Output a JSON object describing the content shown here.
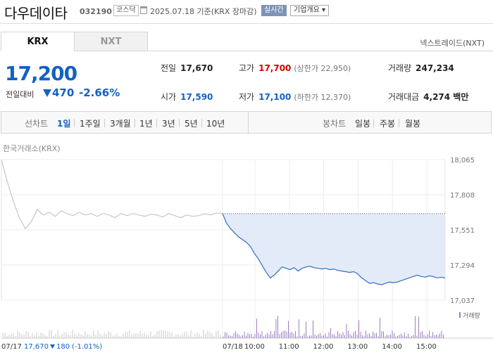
{
  "header": {
    "name": "다우데이타",
    "code": "032190",
    "market": "코스닥",
    "date": "2025.07.18 기준(KRX 장마감)",
    "realtime": "실시간",
    "company_info": "기업개요"
  },
  "tabs": {
    "active": "KRX",
    "inactive": "NXT"
  },
  "nxt_link": "넥스트레이드(NXT)",
  "quote": {
    "price": "17,200",
    "change_label": "전일대비",
    "change": "470",
    "change_pct": "-2.66%",
    "prev_label": "전일",
    "prev": "17,670",
    "high_label": "고가",
    "high": "17,700",
    "upper_limit": "(상한가 22,950)",
    "volume_label": "거래량",
    "volume": "247,234",
    "open_label": "시가",
    "open": "17,590",
    "low_label": "저가",
    "low": "17,100",
    "lower_limit": "(하한가 12,370)",
    "value_label": "거래대금",
    "value": "4,274 백만"
  },
  "periods": {
    "line_label": "선차트",
    "line_items": [
      "1일",
      "1주일",
      "3개월",
      "1년",
      "3년",
      "5년",
      "10년"
    ],
    "selected": "1일",
    "candle_label": "봉차트",
    "candle_items": [
      "일봉",
      "주봉",
      "월봉"
    ]
  },
  "chart_data": {
    "type": "line",
    "source": "한국거래소(KRX)",
    "y_ticks": [
      "18,065",
      "17,808",
      "17,551",
      "17,294",
      "17,037"
    ],
    "ylim": [
      17037,
      18065
    ],
    "prev_close": 17670,
    "x_labels": [
      "07/18",
      "10:00",
      "11:00",
      "12:00",
      "13:00",
      "14:00",
      "15:00"
    ],
    "volume_label": "거래량",
    "prev_day": {
      "date": "07/17",
      "close": "17,670",
      "change": "180",
      "change_pct": "(-1.01%)"
    },
    "prev_series": [
      18065,
      17900,
      17760,
      17640,
      17560,
      17610,
      17700,
      17660,
      17680,
      17650,
      17690,
      17670,
      17655,
      17680,
      17660,
      17670,
      17650,
      17670,
      17660,
      17640,
      17670,
      17655,
      17670,
      17660,
      17650,
      17665,
      17660,
      17645,
      17670,
      17655,
      17640,
      17660,
      17650,
      17655,
      17670,
      17660,
      17675,
      17670
    ],
    "today_series": [
      17670,
      17600,
      17560,
      17530,
      17500,
      17480,
      17460,
      17430,
      17380,
      17340,
      17290,
      17240,
      17200,
      17220,
      17250,
      17280,
      17270,
      17260,
      17275,
      17250,
      17270,
      17280,
      17285,
      17275,
      17270,
      17265,
      17270,
      17260,
      17265,
      17255,
      17250,
      17245,
      17240,
      17245,
      17230,
      17200,
      17180,
      17160,
      17165,
      17155,
      17150,
      17160,
      17170,
      17165,
      17170,
      17180,
      17190,
      17200,
      17210,
      17220,
      17210,
      17205,
      17215,
      17210,
      17200,
      17205,
      17200
    ]
  }
}
